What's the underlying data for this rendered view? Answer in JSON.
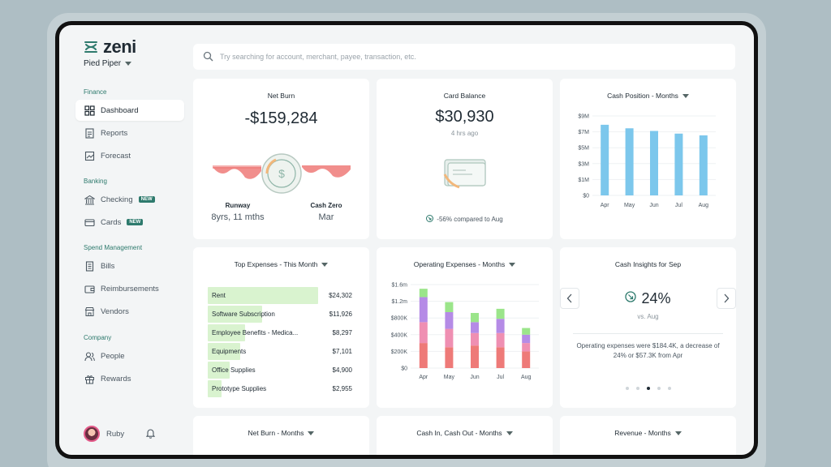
{
  "brand": {
    "name": "zeni"
  },
  "company": {
    "name": "Pied Piper"
  },
  "search": {
    "placeholder": "Try searching for account, merchant, payee, transaction, etc."
  },
  "sidebar": {
    "sections": [
      {
        "label": "Finance",
        "items": [
          {
            "label": "Dashboard",
            "icon": "grid-icon",
            "active": true
          },
          {
            "label": "Reports",
            "icon": "reports-icon"
          },
          {
            "label": "Forecast",
            "icon": "forecast-icon"
          }
        ]
      },
      {
        "label": "Banking",
        "items": [
          {
            "label": "Checking",
            "icon": "bank-icon",
            "badge": "NEW"
          },
          {
            "label": "Cards",
            "icon": "card-icon",
            "badge": "NEW"
          }
        ]
      },
      {
        "label": "Spend Management",
        "items": [
          {
            "label": "Bills",
            "icon": "bill-icon"
          },
          {
            "label": "Reimbursements",
            "icon": "wallet-icon"
          },
          {
            "label": "Vendors",
            "icon": "store-icon"
          }
        ]
      },
      {
        "label": "Company",
        "items": [
          {
            "label": "People",
            "icon": "people-icon"
          },
          {
            "label": "Rewards",
            "icon": "gift-icon"
          }
        ]
      }
    ],
    "user": {
      "name": "Ruby"
    }
  },
  "net_burn": {
    "title": "Net Burn",
    "value": "-$159,284",
    "runway_label": "Runway",
    "runway_value": "8yrs, 11 mths",
    "cash_zero_label": "Cash Zero",
    "cash_zero_value": "Mar",
    "coin_symbol": "$"
  },
  "card_balance": {
    "title": "Card Balance",
    "value": "$30,930",
    "updated": "4 hrs ago",
    "comparison": "-56% compared to Aug"
  },
  "cash_position": {
    "title": "Cash Position - Months"
  },
  "top_expenses": {
    "title": "Top Expenses - This Month",
    "rows": [
      {
        "name": "Rent",
        "value": "$24,302",
        "amount": 24302
      },
      {
        "name": "Software Subscription",
        "value": "$11,926",
        "amount": 11926
      },
      {
        "name": "Employee Benefits - Medica...",
        "value": "$8,297",
        "amount": 8297
      },
      {
        "name": "Equipments",
        "value": "$7,101",
        "amount": 7101
      },
      {
        "name": "Office Supplies",
        "value": "$4,900",
        "amount": 4900
      },
      {
        "name": "Prototype Supplies",
        "value": "$2,955",
        "amount": 2955
      }
    ]
  },
  "operating_expenses": {
    "title": "Operating Expenses - Months"
  },
  "cash_insights": {
    "title": "Cash Insights for Sep",
    "value": "24%",
    "compare": "vs. Aug",
    "text": "Operating expenses were $184.4K, a decrease of 24% or $57.3K from Apr",
    "dot_count": 5,
    "active_dot": 2
  },
  "bottom_cards": {
    "net_burn_months": "Net Burn - Months",
    "cash_in_out": "Cash In, Cash Out - Months",
    "revenue_months": "Revenue - Months"
  },
  "colors": {
    "accent": "#2e7a6d",
    "bar_blue": "#7cc7ec",
    "expense_bar": "#d9f3cf",
    "stack_red": "#ee7a78",
    "stack_pink": "#ef8fb2",
    "stack_purple": "#b58be6",
    "stack_green": "#9be58a"
  },
  "chart_data": [
    {
      "type": "bar",
      "title": "Cash Position - Months",
      "categories": [
        "Apr",
        "May",
        "Jun",
        "Jul",
        "Aug"
      ],
      "values": [
        8.0,
        7.6,
        7.3,
        7.0,
        6.8
      ],
      "unit": "$M",
      "yticks": [
        "$0",
        "$1M",
        "$3M",
        "$5M",
        "$7M",
        "$9M"
      ],
      "ylim": [
        0,
        9
      ]
    },
    {
      "type": "bar",
      "title": "Operating Expenses - Months",
      "stacked": true,
      "categories": [
        "Apr",
        "May",
        "Jun",
        "Jul",
        "Aug"
      ],
      "yticks": [
        "$0",
        "$200K",
        "$400K",
        "$800K",
        "$1.2m",
        "$1.6m"
      ],
      "series": [
        {
          "values": [
            300,
            250,
            270,
            250,
            200
          ],
          "color_key": "stack_red"
        },
        {
          "values": [
            250,
            220,
            150,
            170,
            100
          ],
          "color_key": "stack_pink"
        },
        {
          "values": [
            300,
            200,
            130,
            170,
            100
          ],
          "color_key": "stack_purple"
        },
        {
          "values": [
            100,
            120,
            110,
            120,
            80
          ],
          "color_key": "stack_green"
        }
      ],
      "unit": "$K"
    }
  ]
}
